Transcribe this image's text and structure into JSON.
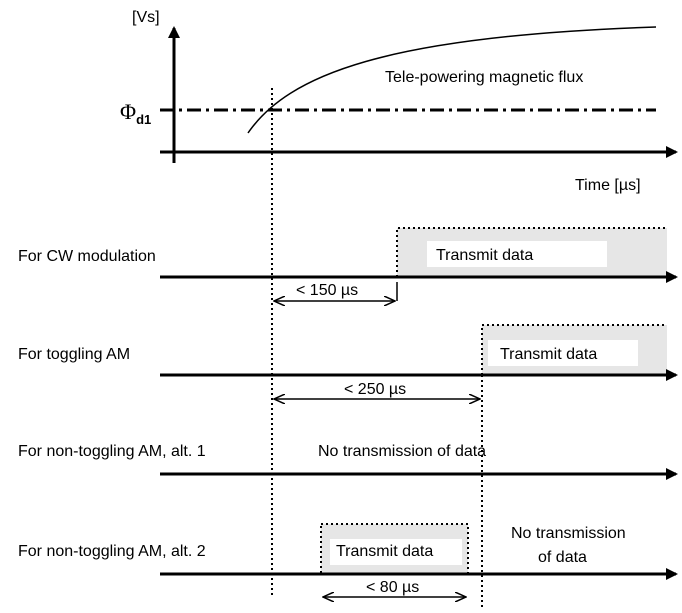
{
  "top_graph": {
    "y_unit": "[Vs]",
    "phi_symbol": "Φ",
    "phi_subscript": "d1",
    "curve_label": "Tele-powering magnetic flux",
    "x_label": "Time [µs]"
  },
  "rows": [
    {
      "label": "For CW modulation",
      "transmit": "Transmit data",
      "interval": "< 150 µs"
    },
    {
      "label": "For toggling AM",
      "transmit": "Transmit data",
      "interval": "< 250 µs"
    },
    {
      "label": "For non-toggling AM, alt. 1",
      "no_tx": "No transmission of data"
    },
    {
      "label": "For non-toggling AM, alt. 2",
      "transmit": "Transmit data",
      "interval": "< 80 µs",
      "no_tx_line1": "No transmission",
      "no_tx_line2": "of data"
    }
  ],
  "colors": {
    "line": "#000000",
    "transmit_fill": "#e6e6e6",
    "label_box": "#ffffff"
  }
}
